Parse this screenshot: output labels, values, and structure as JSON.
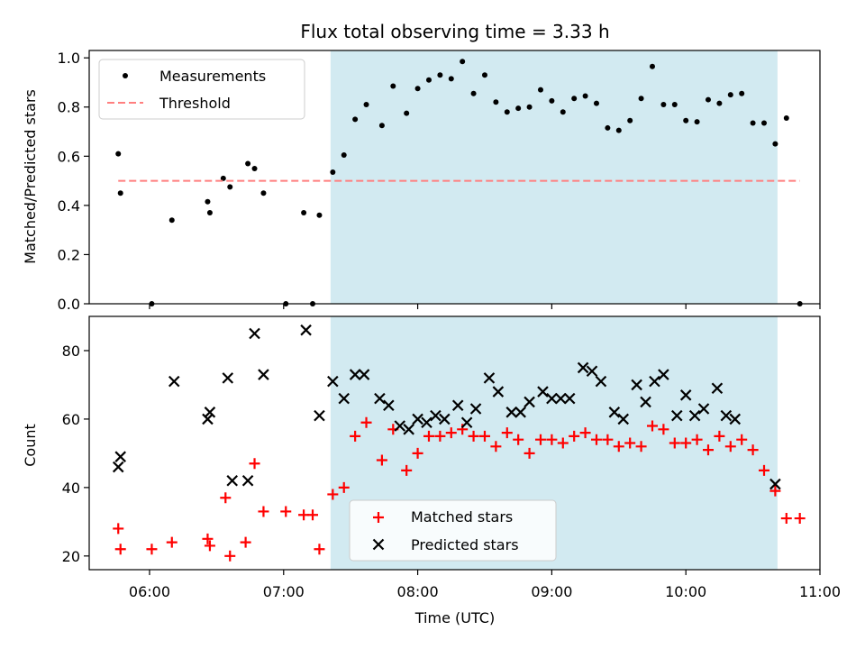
{
  "chart_data": [
    {
      "type": "scatter",
      "title": "Flux total observing time = 3.33 h",
      "xlabel": "",
      "ylabel": "Matched/Predicted stars",
      "ylim": [
        0,
        1.03
      ],
      "yticks": [
        "0.0",
        "0.2",
        "0.4",
        "0.6",
        "0.8",
        "1.0"
      ],
      "ytick_values": [
        0,
        0.2,
        0.4,
        0.6,
        0.8,
        1.0
      ],
      "legend_position": "upper-left",
      "shaded_region": {
        "start": "07:21",
        "end": "10:41",
        "color": "#add8e6"
      },
      "series": [
        {
          "name": "Measurements",
          "marker": "dot",
          "color": "#000000",
          "points": [
            [
              "05:46",
              0.61
            ],
            [
              "05:47",
              0.45
            ],
            [
              "06:10",
              0.34
            ],
            [
              "06:01",
              0.0
            ],
            [
              "06:26",
              0.415
            ],
            [
              "06:27",
              0.37
            ],
            [
              "06:33",
              0.51
            ],
            [
              "06:36",
              0.475
            ],
            [
              "06:44",
              0.57
            ],
            [
              "06:47",
              0.55
            ],
            [
              "06:51",
              0.45
            ],
            [
              "07:01",
              0.0
            ],
            [
              "07:09",
              0.37
            ],
            [
              "07:13",
              0.0
            ],
            [
              "07:16",
              0.36
            ],
            [
              "07:22",
              0.535
            ],
            [
              "07:27",
              0.605
            ],
            [
              "07:32",
              0.75
            ],
            [
              "07:37",
              0.81
            ],
            [
              "07:44",
              0.725
            ],
            [
              "07:49",
              0.885
            ],
            [
              "07:55",
              0.775
            ],
            [
              "08:00",
              0.875
            ],
            [
              "08:05",
              0.91
            ],
            [
              "08:10",
              0.93
            ],
            [
              "08:15",
              0.915
            ],
            [
              "08:20",
              0.985
            ],
            [
              "08:25",
              0.855
            ],
            [
              "08:30",
              0.93
            ],
            [
              "08:35",
              0.82
            ],
            [
              "08:40",
              0.78
            ],
            [
              "08:45",
              0.795
            ],
            [
              "08:50",
              0.8
            ],
            [
              "08:55",
              0.87
            ],
            [
              "09:00",
              0.825
            ],
            [
              "09:05",
              0.78
            ],
            [
              "09:10",
              0.835
            ],
            [
              "09:15",
              0.845
            ],
            [
              "09:20",
              0.815
            ],
            [
              "09:25",
              0.715
            ],
            [
              "09:30",
              0.705
            ],
            [
              "09:35",
              0.745
            ],
            [
              "09:40",
              0.835
            ],
            [
              "09:45",
              0.965
            ],
            [
              "09:50",
              0.81
            ],
            [
              "09:55",
              0.81
            ],
            [
              "10:00",
              0.745
            ],
            [
              "10:05",
              0.74
            ],
            [
              "10:10",
              0.83
            ],
            [
              "10:15",
              0.815
            ],
            [
              "10:20",
              0.85
            ],
            [
              "10:25",
              0.855
            ],
            [
              "10:30",
              0.735
            ],
            [
              "10:35",
              0.735
            ],
            [
              "10:40",
              0.65
            ],
            [
              "10:45",
              0.755
            ],
            [
              "10:51",
              0.0
            ]
          ]
        },
        {
          "name": "Threshold",
          "marker": "dashed-line",
          "color": "#ff7f7f",
          "points": [
            [
              "05:46",
              0.5
            ],
            [
              "10:51",
              0.5
            ]
          ]
        }
      ]
    },
    {
      "type": "scatter",
      "xlabel": "Time (UTC)",
      "ylabel": "Count",
      "xlim": [
        "05:33",
        "11:00"
      ],
      "ylim": [
        16,
        90
      ],
      "xticks": [
        "06:00",
        "07:00",
        "08:00",
        "09:00",
        "10:00",
        "11:00"
      ],
      "yticks": [
        "20",
        "40",
        "60",
        "80"
      ],
      "ytick_values": [
        20,
        40,
        60,
        80
      ],
      "legend_position": "lower-center",
      "shaded_region": {
        "start": "07:21",
        "end": "10:41",
        "color": "#add8e6"
      },
      "series": [
        {
          "name": "Matched stars",
          "marker": "plus",
          "color": "#ff0000",
          "points": [
            [
              "05:46",
              28
            ],
            [
              "05:47",
              22
            ],
            [
              "06:01",
              22
            ],
            [
              "06:10",
              24
            ],
            [
              "06:26",
              25
            ],
            [
              "06:27",
              23
            ],
            [
              "06:34",
              37
            ],
            [
              "06:36",
              20
            ],
            [
              "06:43",
              24
            ],
            [
              "06:47",
              47
            ],
            [
              "06:51",
              33
            ],
            [
              "07:01",
              33
            ],
            [
              "07:09",
              32
            ],
            [
              "07:13",
              32
            ],
            [
              "07:16",
              22
            ],
            [
              "07:22",
              38
            ],
            [
              "07:27",
              40
            ],
            [
              "07:32",
              55
            ],
            [
              "07:37",
              59
            ],
            [
              "07:44",
              48
            ],
            [
              "07:49",
              57
            ],
            [
              "07:55",
              45
            ],
            [
              "08:00",
              50
            ],
            [
              "08:05",
              55
            ],
            [
              "08:10",
              55
            ],
            [
              "08:15",
              56
            ],
            [
              "08:20",
              57
            ],
            [
              "08:25",
              55
            ],
            [
              "08:30",
              55
            ],
            [
              "08:35",
              52
            ],
            [
              "08:40",
              56
            ],
            [
              "08:45",
              54
            ],
            [
              "08:50",
              50
            ],
            [
              "08:55",
              54
            ],
            [
              "09:00",
              54
            ],
            [
              "09:05",
              53
            ],
            [
              "09:10",
              55
            ],
            [
              "09:15",
              56
            ],
            [
              "09:20",
              54
            ],
            [
              "09:25",
              54
            ],
            [
              "09:30",
              52
            ],
            [
              "09:35",
              53
            ],
            [
              "09:40",
              52
            ],
            [
              "09:45",
              58
            ],
            [
              "09:50",
              57
            ],
            [
              "09:55",
              53
            ],
            [
              "10:00",
              53
            ],
            [
              "10:05",
              54
            ],
            [
              "10:10",
              51
            ],
            [
              "10:15",
              55
            ],
            [
              "10:20",
              52
            ],
            [
              "10:25",
              54
            ],
            [
              "10:30",
              51
            ],
            [
              "10:35",
              45
            ],
            [
              "10:40",
              39
            ],
            [
              "10:45",
              31
            ],
            [
              "10:51",
              31
            ]
          ]
        },
        {
          "name": "Predicted stars",
          "marker": "x",
          "color": "#000000",
          "points": [
            [
              "05:46",
              46
            ],
            [
              "05:47",
              49
            ],
            [
              "06:11",
              71
            ],
            [
              "06:26",
              60
            ],
            [
              "06:27",
              62
            ],
            [
              "06:35",
              72
            ],
            [
              "06:37",
              42
            ],
            [
              "06:44",
              42
            ],
            [
              "06:47",
              85
            ],
            [
              "06:51",
              73
            ],
            [
              "07:10",
              86
            ],
            [
              "07:16",
              61
            ],
            [
              "07:22",
              71
            ],
            [
              "07:27",
              66
            ],
            [
              "07:32",
              73
            ],
            [
              "07:36",
              73
            ],
            [
              "07:43",
              66
            ],
            [
              "07:47",
              64
            ],
            [
              "07:52",
              58
            ],
            [
              "07:56",
              57
            ],
            [
              "08:00",
              60
            ],
            [
              "08:04",
              59
            ],
            [
              "08:08",
              61
            ],
            [
              "08:12",
              60
            ],
            [
              "08:18",
              64
            ],
            [
              "08:22",
              59
            ],
            [
              "08:26",
              63
            ],
            [
              "08:32",
              72
            ],
            [
              "08:36",
              68
            ],
            [
              "08:42",
              62
            ],
            [
              "08:46",
              62
            ],
            [
              "08:50",
              65
            ],
            [
              "08:56",
              68
            ],
            [
              "09:00",
              66
            ],
            [
              "09:04",
              66
            ],
            [
              "09:08",
              66
            ],
            [
              "09:14",
              75
            ],
            [
              "09:18",
              74
            ],
            [
              "09:22",
              71
            ],
            [
              "09:28",
              62
            ],
            [
              "09:32",
              60
            ],
            [
              "09:38",
              70
            ],
            [
              "09:42",
              65
            ],
            [
              "09:46",
              71
            ],
            [
              "09:50",
              73
            ],
            [
              "09:56",
              61
            ],
            [
              "10:00",
              67
            ],
            [
              "10:04",
              61
            ],
            [
              "10:08",
              63
            ],
            [
              "10:14",
              69
            ],
            [
              "10:18",
              61
            ],
            [
              "10:22",
              60
            ],
            [
              "10:40",
              41
            ]
          ]
        }
      ]
    }
  ]
}
